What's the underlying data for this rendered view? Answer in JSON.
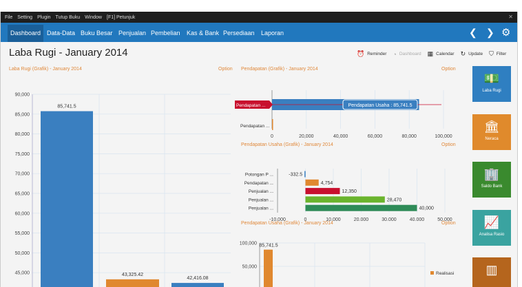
{
  "menubar": [
    "File",
    "Setting",
    "Plugin",
    "Tutup Buku",
    "Window",
    "[F1] Petunjuk"
  ],
  "navbar": {
    "items": [
      "Dashboard",
      "Data-Data",
      "Buku Besar",
      "Penjualan",
      "Pembelian",
      "Kas & Bank",
      "Persediaan",
      "Laporan"
    ],
    "active": "Dashboard"
  },
  "page": {
    "title": "Laba Rugi - January 2014"
  },
  "toolbar": {
    "reminder": "Reminder",
    "dashboard": "Dashboard",
    "calendar": "Calendar",
    "update": "Update",
    "filter": "Filter"
  },
  "panels": {
    "laba_rugi": {
      "title": "Laba Rugi (Grafik) - January 2014",
      "option": "Option"
    },
    "pendapatan": {
      "title": "Pendapatan (Grafik) - January 2014",
      "option": "Option"
    },
    "pendapatan_usaha": {
      "title": "Pendapatan Usaha (Grafik) - January 2014",
      "option": "Option"
    },
    "pendapatan_usaha2": {
      "title": "Pendapatan Usaha (Grafik) - January 2014",
      "option": "Option"
    }
  },
  "tiles": [
    {
      "label": "Laba Rugi",
      "color": "#2f7fc1",
      "icon": "money-icon"
    },
    {
      "label": "Neraca",
      "color": "#e08a2c",
      "icon": "bank-icon"
    },
    {
      "label": "Saldo Bank",
      "color": "#3a8a2e",
      "icon": "building-icon"
    },
    {
      "label": "Analisa Rasio",
      "color": "#3aa3a0",
      "icon": "chart-icon"
    },
    {
      "label": "",
      "color": "#b5651d",
      "icon": "report-icon"
    }
  ],
  "chart_data": [
    {
      "type": "bar",
      "ylim": [
        40000,
        90000
      ],
      "yticks": [
        "90,000",
        "85,000",
        "80,000",
        "75,000",
        "70,000",
        "65,000",
        "60,000",
        "55,000",
        "50,000",
        "45,000"
      ],
      "values": [
        85741.5,
        43325.42,
        42416.08
      ],
      "value_labels": [
        "85,741.5",
        "43,325.42",
        "42,416.08"
      ],
      "colors": [
        "#3a7fc0",
        "#e0882f",
        "#3a7fc0"
      ],
      "grid": true
    },
    {
      "type": "bar",
      "orientation": "horizontal",
      "categories": [
        "Pendapatan ...",
        "Pendapatan ..."
      ],
      "values": [
        85741.5,
        0
      ],
      "xlim": [
        0,
        100000
      ],
      "xticks": [
        "0",
        "20,000",
        "40,000",
        "60,000",
        "80,000",
        "100,000"
      ],
      "tooltip": "Pendapatan Usaha : 85,741.5",
      "grid": true
    },
    {
      "type": "bar",
      "orientation": "horizontal",
      "categories": [
        "Potongan P ...",
        "Pendapatan ...",
        "Penjualan ...",
        "Penjualan ...",
        "Penjualan ..."
      ],
      "values": [
        -332.5,
        4754,
        12350,
        28470,
        40000
      ],
      "value_labels": [
        "-332.5",
        "4,754",
        "12,350",
        "28,470",
        "40,000"
      ],
      "colors": [
        "#3a7fc0",
        "#e0882f",
        "#c8102e",
        "#6ab42d",
        "#2e8b57"
      ],
      "xlim": [
        -10000,
        50000
      ],
      "xticks": [
        "-10,000",
        "0",
        "10,000",
        "20,000",
        "30,000",
        "40,000",
        "50,000"
      ],
      "grid": true
    },
    {
      "type": "bar",
      "values": [
        85741.5
      ],
      "value_labels": [
        "85,741.5"
      ],
      "yticks": [
        "100,000",
        "50,000"
      ],
      "legend": [
        "Realisasi"
      ],
      "legend_colors": [
        "#e0882f"
      ],
      "grid": true
    }
  ]
}
